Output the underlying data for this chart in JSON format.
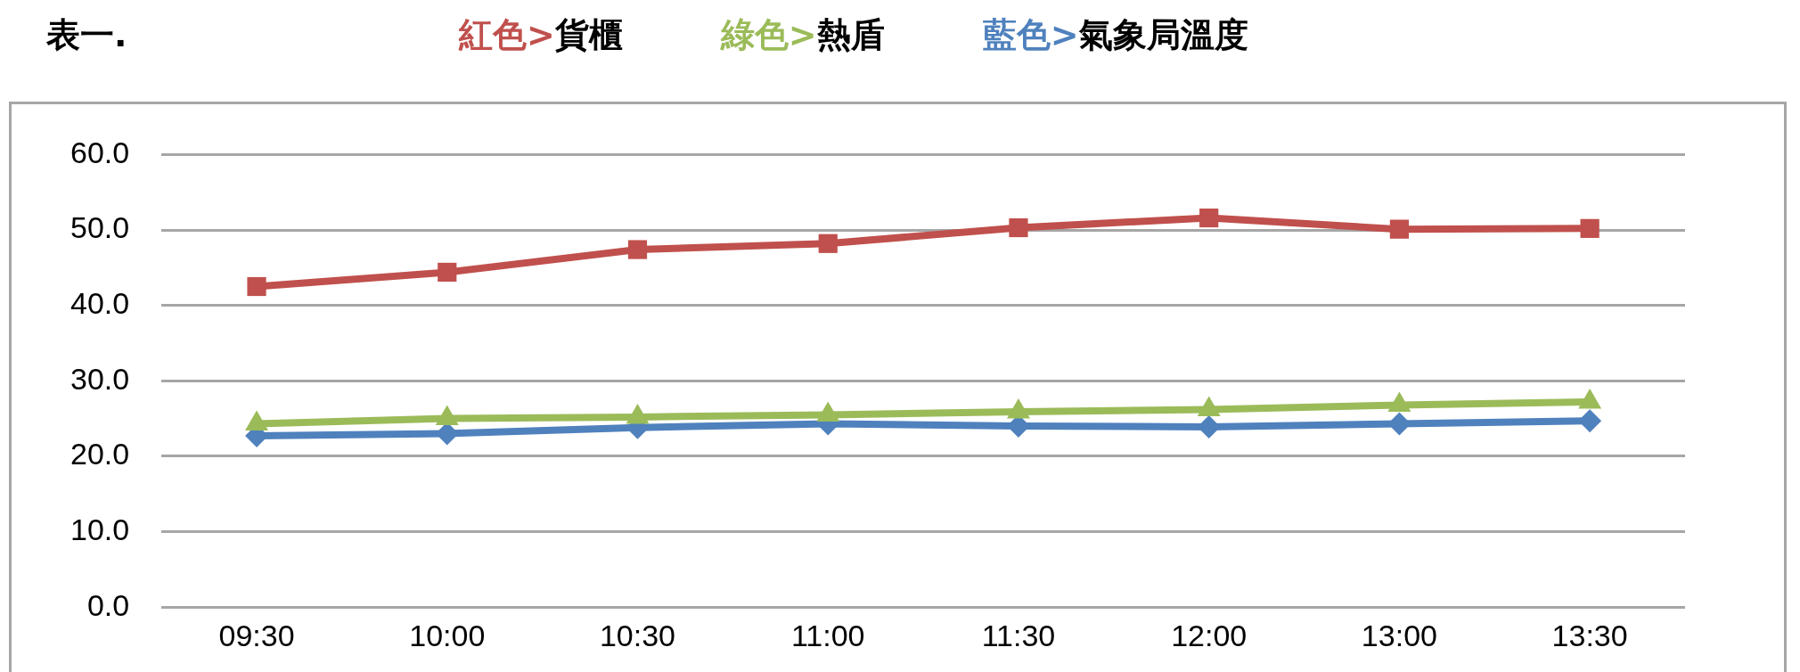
{
  "chart_data": {
    "type": "line",
    "title": "表一.",
    "categories": [
      "09:30",
      "10:00",
      "10:30",
      "11:00",
      "11:30",
      "12:00",
      "13:00",
      "13:30"
    ],
    "series": [
      {
        "name": "紅色>貨櫃",
        "color": "#c0504d",
        "marker": "square",
        "values": [
          42.5,
          44.4,
          47.4,
          48.2,
          50.3,
          51.6,
          50.1,
          50.2
        ]
      },
      {
        "name": "綠色>熱盾",
        "color": "#9bbb59",
        "marker": "triangle",
        "values": [
          24.3,
          25.0,
          25.2,
          25.5,
          25.9,
          26.2,
          26.8,
          27.2
        ]
      },
      {
        "name": "藍色>氣象局溫度",
        "color": "#4f81bd",
        "marker": "diamond",
        "values": [
          22.7,
          23.0,
          23.8,
          24.3,
          24.0,
          23.9,
          24.3,
          24.7
        ]
      }
    ],
    "ylim": [
      0,
      60
    ],
    "yticks": [
      {
        "value": 0,
        "label": "0.0"
      },
      {
        "value": 10,
        "label": "10.0"
      },
      {
        "value": 20,
        "label": "20.0"
      },
      {
        "value": 30,
        "label": "30.0"
      },
      {
        "value": 40,
        "label": "40.0"
      },
      {
        "value": 50,
        "label": "50.0"
      },
      {
        "value": 60,
        "label": "60.0"
      }
    ],
    "grid": "y",
    "legend": "top",
    "line_style": "solid"
  }
}
